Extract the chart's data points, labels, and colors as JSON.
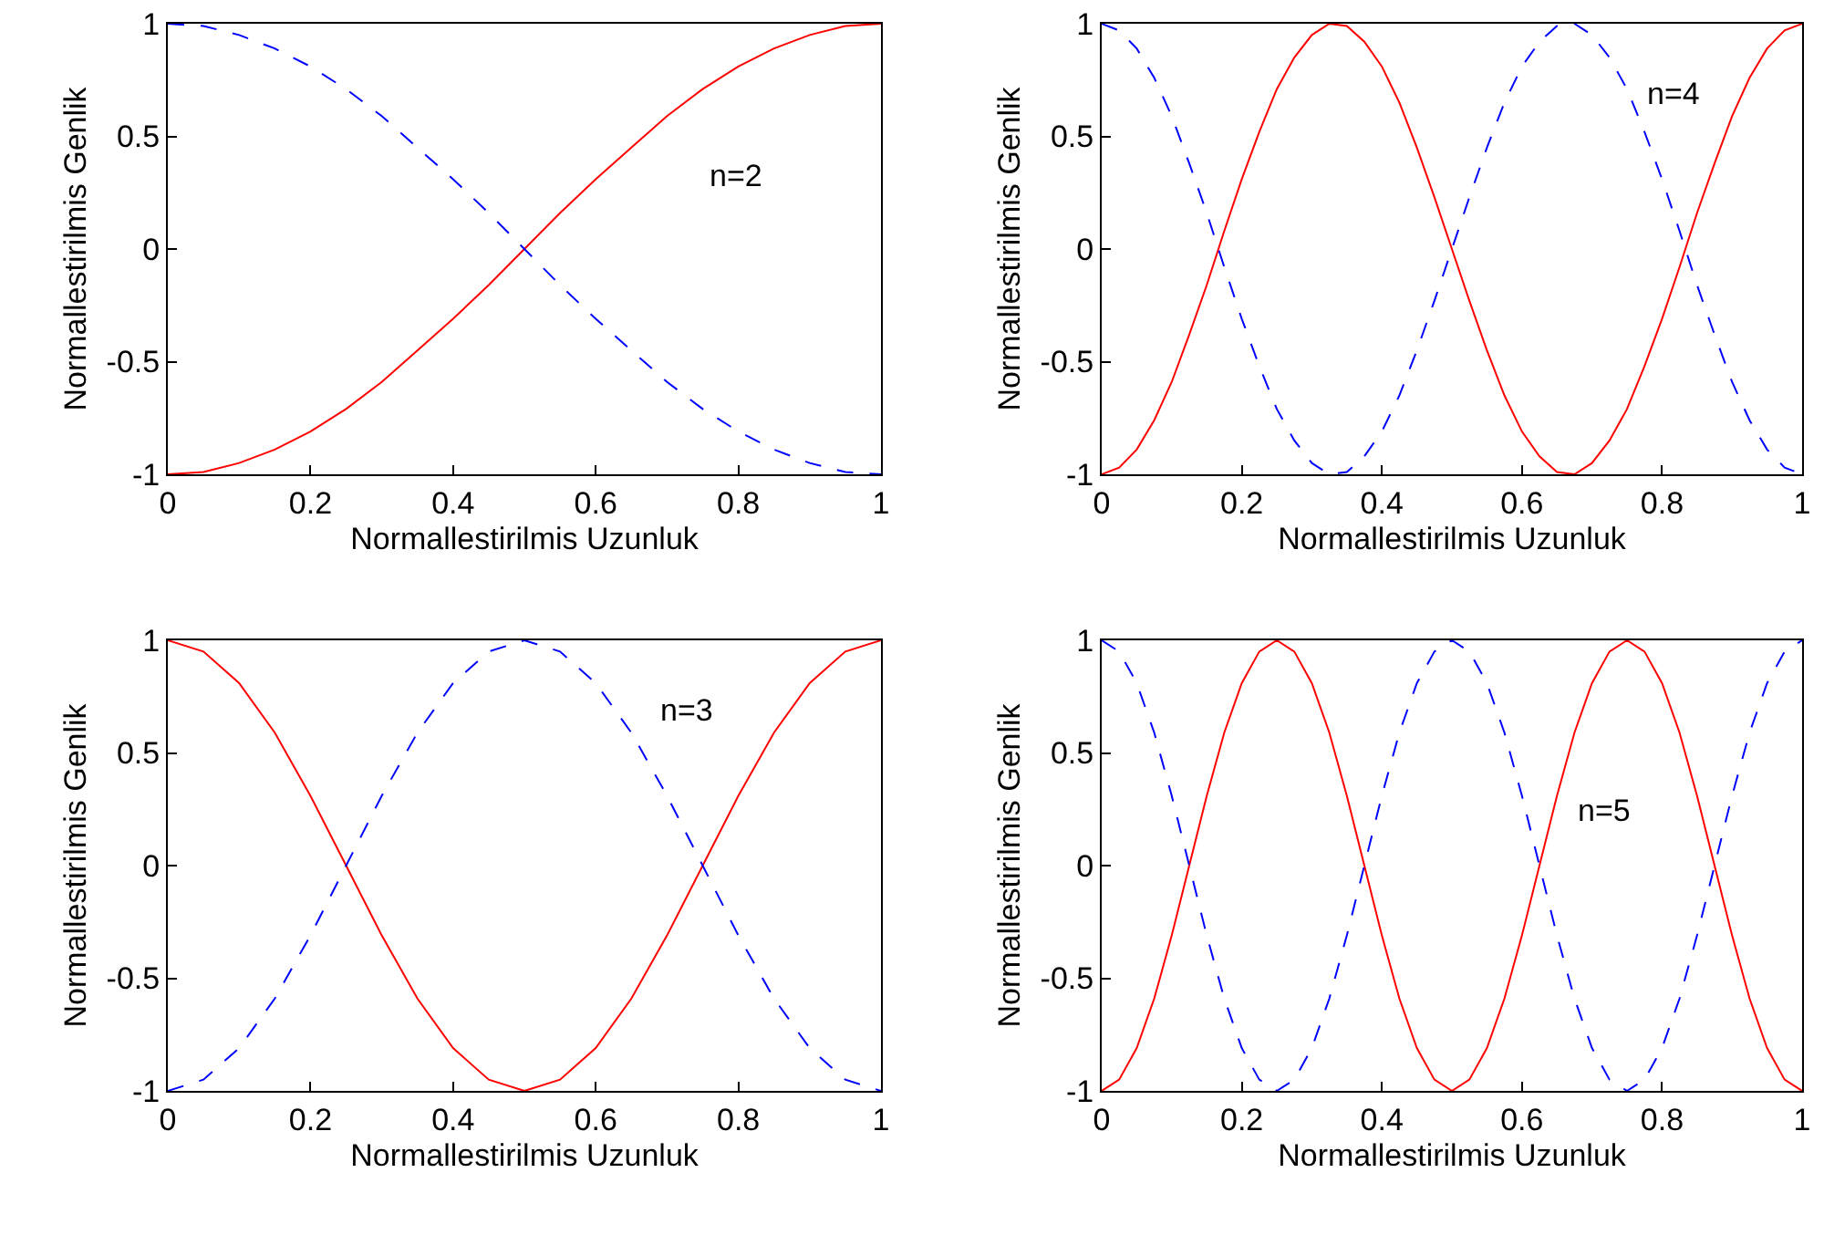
{
  "chart_data": [
    {
      "type": "line",
      "xlabel": "Normallestirilmis Uzunluk",
      "ylabel": "Normallestirilmis Genlik",
      "x": [
        0,
        0.05,
        0.1,
        0.15,
        0.2,
        0.25,
        0.3,
        0.35,
        0.4,
        0.45,
        0.5,
        0.55,
        0.6,
        0.65,
        0.7,
        0.75,
        0.8,
        0.85,
        0.9,
        0.95,
        1
      ],
      "series": [
        {
          "color": "#ff0000",
          "line_style": "solid",
          "values": [
            -1,
            -0.99,
            -0.95,
            -0.89,
            -0.81,
            -0.71,
            -0.59,
            -0.45,
            -0.31,
            -0.16,
            0,
            0.16,
            0.31,
            0.45,
            0.59,
            0.71,
            0.81,
            0.89,
            0.95,
            0.99,
            1
          ]
        },
        {
          "color": "#0000ff",
          "line_style": "dashed",
          "values": [
            1,
            0.99,
            0.95,
            0.89,
            0.81,
            0.71,
            0.59,
            0.45,
            0.31,
            0.16,
            0,
            -0.16,
            -0.31,
            -0.45,
            -0.59,
            -0.71,
            -0.81,
            -0.89,
            -0.95,
            -0.99,
            -1
          ]
        }
      ],
      "annotations": [
        "n=2"
      ],
      "xlim": [
        0,
        1
      ],
      "xticks": [
        0,
        0.2,
        0.4,
        0.6,
        0.8,
        1
      ],
      "ylim": [
        -1,
        1
      ],
      "yticks": [
        -1,
        -0.5,
        0,
        0.5,
        1
      ],
      "grid": false,
      "marker": "none"
    },
    {
      "type": "line",
      "xlabel": "Normallestirilmis Uzunluk",
      "ylabel": "Normallestirilmis Genlik",
      "x": [
        0,
        0.025,
        0.05,
        0.075,
        0.1,
        0.125,
        0.15,
        0.175,
        0.2,
        0.225,
        0.25,
        0.275,
        0.3,
        0.325,
        0.35,
        0.375,
        0.4,
        0.425,
        0.45,
        0.475,
        0.5,
        0.525,
        0.55,
        0.575,
        0.6,
        0.625,
        0.65,
        0.675,
        0.7,
        0.725,
        0.75,
        0.775,
        0.8,
        0.825,
        0.85,
        0.875,
        0.9,
        0.925,
        0.95,
        0.975,
        1
      ],
      "series": [
        {
          "color": "#ff0000",
          "line_style": "solid",
          "values": [
            -1,
            -0.97,
            -0.89,
            -0.76,
            -0.59,
            -0.38,
            -0.16,
            0.08,
            0.31,
            0.52,
            0.71,
            0.85,
            0.95,
            1,
            0.99,
            0.92,
            0.81,
            0.65,
            0.45,
            0.23,
            0,
            -0.23,
            -0.45,
            -0.65,
            -0.81,
            -0.92,
            -0.99,
            -1,
            -0.95,
            -0.85,
            -0.71,
            -0.52,
            -0.31,
            -0.08,
            0.16,
            0.38,
            0.59,
            0.76,
            0.89,
            0.97,
            1
          ]
        },
        {
          "color": "#0000ff",
          "line_style": "dashed",
          "values": [
            1,
            0.97,
            0.89,
            0.76,
            0.59,
            0.38,
            0.16,
            -0.08,
            -0.31,
            -0.52,
            -0.71,
            -0.85,
            -0.95,
            -1,
            -0.99,
            -0.92,
            -0.81,
            -0.65,
            -0.45,
            -0.23,
            0,
            0.23,
            0.45,
            0.65,
            0.81,
            0.92,
            0.99,
            1,
            0.95,
            0.85,
            0.71,
            0.52,
            0.31,
            0.08,
            -0.16,
            -0.38,
            -0.59,
            -0.76,
            -0.89,
            -0.97,
            -1
          ]
        }
      ],
      "annotations": [
        "n=4"
      ],
      "xlim": [
        0,
        1
      ],
      "xticks": [
        0,
        0.2,
        0.4,
        0.6,
        0.8,
        1
      ],
      "ylim": [
        -1,
        1
      ],
      "yticks": [
        -1,
        -0.5,
        0,
        0.5,
        1
      ],
      "grid": false,
      "marker": "none"
    },
    {
      "type": "line",
      "xlabel": "Normallestirilmis Uzunluk",
      "ylabel": "Normallestirilmis Genlik",
      "x": [
        0,
        0.05,
        0.1,
        0.15,
        0.2,
        0.25,
        0.3,
        0.35,
        0.4,
        0.45,
        0.5,
        0.55,
        0.6,
        0.65,
        0.7,
        0.75,
        0.8,
        0.85,
        0.9,
        0.95,
        1
      ],
      "series": [
        {
          "color": "#ff0000",
          "line_style": "solid",
          "values": [
            1,
            0.95,
            0.81,
            0.59,
            0.31,
            0,
            -0.31,
            -0.59,
            -0.81,
            -0.95,
            -1,
            -0.95,
            -0.81,
            -0.59,
            -0.31,
            0,
            0.31,
            0.59,
            0.81,
            0.95,
            1
          ]
        },
        {
          "color": "#0000ff",
          "line_style": "dashed",
          "values": [
            -1,
            -0.95,
            -0.81,
            -0.59,
            -0.31,
            0,
            0.31,
            0.59,
            0.81,
            0.95,
            1,
            0.95,
            0.81,
            0.59,
            0.31,
            0,
            -0.31,
            -0.59,
            -0.81,
            -0.95,
            -1
          ]
        }
      ],
      "annotations": [
        "n=3"
      ],
      "xlim": [
        0,
        1
      ],
      "xticks": [
        0,
        0.2,
        0.4,
        0.6,
        0.8,
        1
      ],
      "ylim": [
        -1,
        1
      ],
      "yticks": [
        -1,
        -0.5,
        0,
        0.5,
        1
      ],
      "grid": false,
      "marker": "none"
    },
    {
      "type": "line",
      "xlabel": "Normallestirilmis Uzunluk",
      "ylabel": "Normallestirilmis Genlik",
      "x": [
        0,
        0.025,
        0.05,
        0.075,
        0.1,
        0.125,
        0.15,
        0.175,
        0.2,
        0.225,
        0.25,
        0.275,
        0.3,
        0.325,
        0.35,
        0.375,
        0.4,
        0.425,
        0.45,
        0.475,
        0.5,
        0.525,
        0.55,
        0.575,
        0.6,
        0.625,
        0.65,
        0.675,
        0.7,
        0.725,
        0.75,
        0.775,
        0.8,
        0.825,
        0.85,
        0.875,
        0.9,
        0.925,
        0.95,
        0.975,
        1
      ],
      "series": [
        {
          "color": "#ff0000",
          "line_style": "solid",
          "values": [
            -1,
            -0.95,
            -0.81,
            -0.59,
            -0.31,
            0,
            0.31,
            0.59,
            0.81,
            0.95,
            1,
            0.95,
            0.81,
            0.59,
            0.31,
            0,
            -0.31,
            -0.59,
            -0.81,
            -0.95,
            -1,
            -0.95,
            -0.81,
            -0.59,
            -0.31,
            0,
            0.31,
            0.59,
            0.81,
            0.95,
            1,
            0.95,
            0.81,
            0.59,
            0.31,
            0,
            -0.31,
            -0.59,
            -0.81,
            -0.95,
            -1
          ]
        },
        {
          "color": "#0000ff",
          "line_style": "dashed",
          "values": [
            1,
            0.95,
            0.81,
            0.59,
            0.31,
            0,
            -0.31,
            -0.59,
            -0.81,
            -0.95,
            -1,
            -0.95,
            -0.81,
            -0.59,
            -0.31,
            0,
            0.31,
            0.59,
            0.81,
            0.95,
            1,
            0.95,
            0.81,
            0.59,
            0.31,
            0,
            -0.31,
            -0.59,
            -0.81,
            -0.95,
            -1,
            -0.95,
            -0.81,
            -0.59,
            -0.31,
            0,
            0.31,
            0.59,
            0.81,
            0.95,
            1
          ]
        }
      ],
      "annotations": [
        "n=5"
      ],
      "xlim": [
        0,
        1
      ],
      "xticks": [
        0,
        0.2,
        0.4,
        0.6,
        0.8,
        1
      ],
      "ylim": [
        -1,
        1
      ],
      "yticks": [
        -1,
        -0.5,
        0,
        0.5,
        1
      ],
      "grid": false,
      "marker": "none"
    }
  ]
}
